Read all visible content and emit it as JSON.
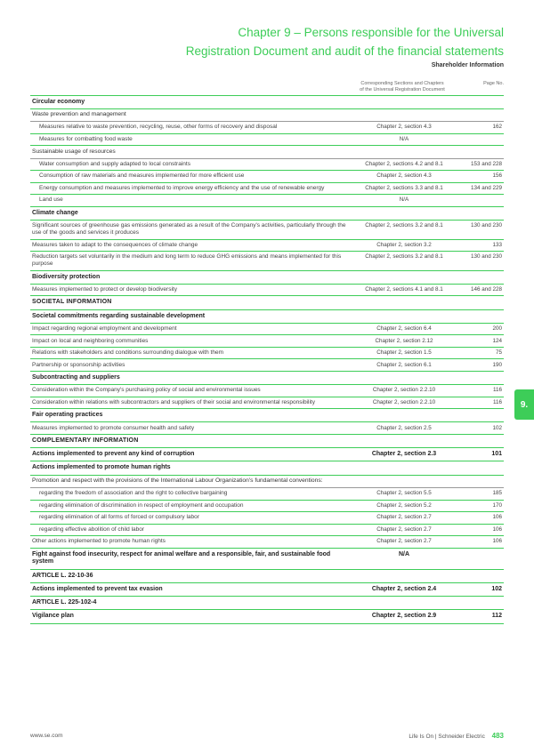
{
  "header": {
    "title_line1": "Chapter 9 – Persons responsible for the Universal",
    "title_line2": "Registration Document and audit of the financial statements",
    "subtitle": "Shareholder Information"
  },
  "columns": {
    "c2a": "Corresponding Sections and Chapters",
    "c2b": "of the Universal Registration Document",
    "c3": "Page No."
  },
  "sidetab": "9.",
  "footer": {
    "left": "www.se.com",
    "right": "Life Is On | Schneider Electric",
    "page": "483"
  },
  "rows": [
    {
      "t": "sh",
      "d": "Circular economy"
    },
    {
      "t": "sub",
      "d": "Waste prevention and management"
    },
    {
      "t": "r",
      "i": 1,
      "d": "Measures relative to waste prevention, recycling, reuse, other forms of recovery and disposal",
      "s": "Chapter 2, section 4.3",
      "p": "162"
    },
    {
      "t": "r",
      "i": 1,
      "d": "Measures for combatting food waste",
      "s": "N/A",
      "p": ""
    },
    {
      "t": "sub",
      "d": "Sustainable usage of resources"
    },
    {
      "t": "r",
      "i": 1,
      "d": "Water consumption and supply adapted to local constraints",
      "s": "Chapter 2, sections 4.2 and 8.1",
      "p": "153 and 228"
    },
    {
      "t": "r",
      "i": 1,
      "d": "Consumption of raw materials and measures implemented for more efficient use",
      "s": "Chapter 2, section 4.3",
      "p": "156"
    },
    {
      "t": "r",
      "i": 1,
      "d": "Energy consumption and measures implemented to improve energy efficiency and the use of renewable energy",
      "s": "Chapter 2, sections 3.3 and 8.1",
      "p": "134 and 229"
    },
    {
      "t": "r",
      "i": 1,
      "d": "Land use",
      "s": "N/A",
      "p": ""
    },
    {
      "t": "sh",
      "d": "Climate change"
    },
    {
      "t": "r",
      "d": "Significant sources of greenhouse gas emissions generated as a result of the Company's activities, particularly through the use of the goods and services it produces",
      "s": "Chapter 2, sections 3.2 and 8.1",
      "p": "130 and 230"
    },
    {
      "t": "r",
      "d": "Measures taken to adapt to the consequences of climate change",
      "s": "Chapter 2, section 3.2",
      "p": "133"
    },
    {
      "t": "r",
      "d": "Reduction targets set voluntarily in the medium and long term to reduce GHG emissions and means implemented for this purpose",
      "s": "Chapter 2, sections 3.2 and 8.1",
      "p": "130 and 230"
    },
    {
      "t": "sh",
      "d": "Biodiversity protection"
    },
    {
      "t": "r",
      "d": "Measures implemented to protect or develop biodiversity",
      "s": "Chapter 2, sections 4.1 and 8.1",
      "p": "146 and 228"
    },
    {
      "t": "sh",
      "caps": 1,
      "d": "SOCIETAL INFORMATION"
    },
    {
      "t": "sh",
      "d": "Societal commitments regarding sustainable development"
    },
    {
      "t": "r",
      "d": "Impact regarding regional employment and development",
      "s": "Chapter 2, section 6.4",
      "p": "200"
    },
    {
      "t": "r",
      "d": "Impact on local and neighboring communities",
      "s": "Chapter 2, section 2.12",
      "p": "124"
    },
    {
      "t": "r",
      "d": "Relations with stakeholders and conditions surrounding dialogue with them",
      "s": "Chapter 2, section 1.5",
      "p": "75"
    },
    {
      "t": "r",
      "d": "Partnership or sponsorship activities",
      "s": "Chapter 2, section 6.1",
      "p": "190"
    },
    {
      "t": "sh",
      "d": "Subcontracting and suppliers"
    },
    {
      "t": "r",
      "d": "Consideration within the Company's purchasing policy of social and environmental issues",
      "s": "Chapter 2, section 2.2.10",
      "p": "116"
    },
    {
      "t": "r",
      "d": "Consideration within relations with subcontractors and suppliers of their social and environmental responsibility",
      "s": "Chapter 2, section 2.2.10",
      "p": "116"
    },
    {
      "t": "sh",
      "d": "Fair operating practices"
    },
    {
      "t": "r",
      "d": "Measures implemented to promote consumer health and safety",
      "s": "Chapter 2, section 2.5",
      "p": "102"
    },
    {
      "t": "sh",
      "caps": 1,
      "d": "COMPLEMENTARY INFORMATION"
    },
    {
      "t": "sh",
      "bold": 1,
      "d": "Actions implemented to prevent any kind of corruption",
      "s": "Chapter 2, section 2.3",
      "p": "101"
    },
    {
      "t": "sh",
      "bold": 1,
      "d": "Actions implemented to promote human rights"
    },
    {
      "t": "sub",
      "d": "Promotion and respect with the provisions of the International Labour Organization's fundamental conventions:"
    },
    {
      "t": "r",
      "i": 1,
      "d": "regarding the freedom of association and the right to collective bargaining",
      "s": "Chapter 2, section 5.5",
      "p": "185"
    },
    {
      "t": "r",
      "i": 1,
      "d": "regarding elimination of discrimination in respect of employment and occupation",
      "s": "Chapter 2, section 5.2",
      "p": "170"
    },
    {
      "t": "r",
      "i": 1,
      "d": "regarding elimination of all forms of forced or compulsory labor",
      "s": "Chapter 2, section 2.7",
      "p": "106"
    },
    {
      "t": "r",
      "i": 1,
      "d": "regarding effective abolition of child labor",
      "s": "Chapter 2, section 2.7",
      "p": "106"
    },
    {
      "t": "r",
      "d": "Other actions implemented to promote human rights",
      "s": "Chapter 2, section 2.7",
      "p": "106"
    },
    {
      "t": "sh",
      "bold": 1,
      "d": "Fight against food insecurity, respect for animal welfare and a responsible, fair, and sustainable food system",
      "s": "N/A",
      "p": ""
    },
    {
      "t": "sh",
      "bold": 1,
      "d": "ARTICLE L. 22-10-36"
    },
    {
      "t": "sh",
      "bold": 1,
      "d": "Actions implemented to prevent tax evasion",
      "s": "Chapter 2, section 2.4",
      "p": "102"
    },
    {
      "t": "sh",
      "bold": 1,
      "d": "ARTICLE L. 225-102-4"
    },
    {
      "t": "sh",
      "bold": 1,
      "d": "Vigilance plan",
      "s": "Chapter 2, section 2.9",
      "p": "112"
    }
  ]
}
